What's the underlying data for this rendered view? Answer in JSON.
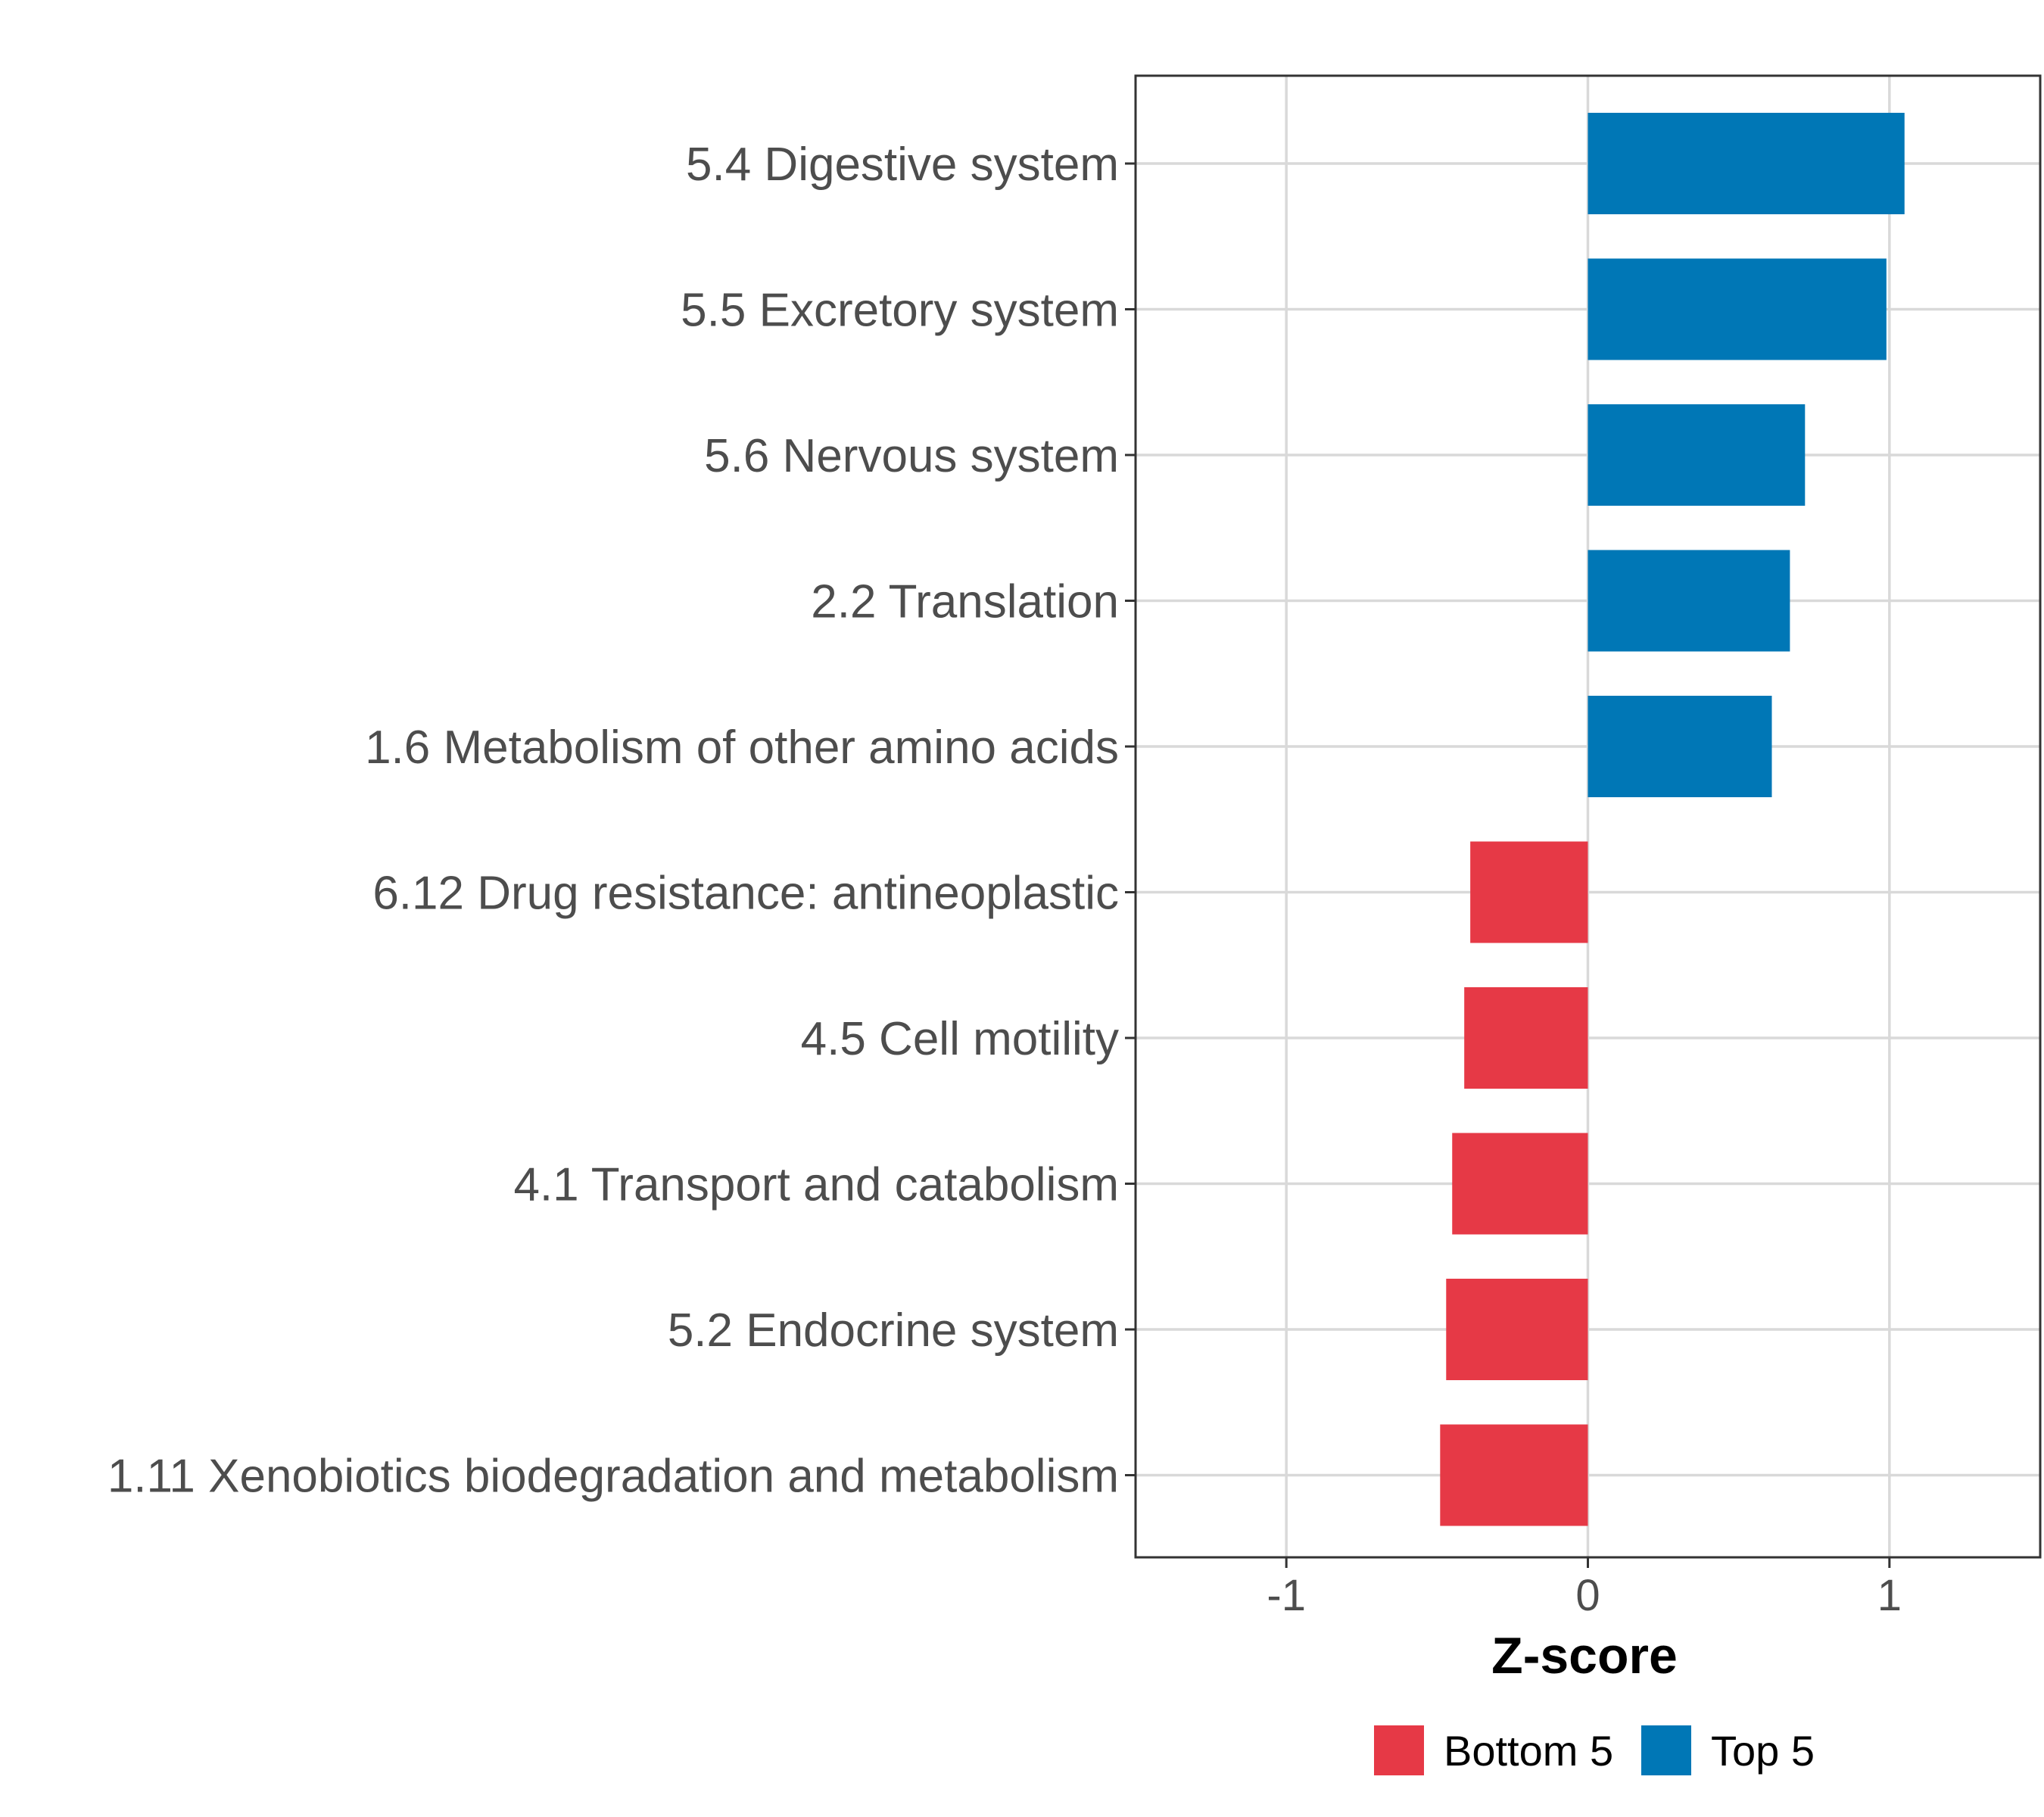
{
  "chart_data": {
    "type": "bar",
    "orientation": "horizontal",
    "title": "",
    "xlabel": "Z-score",
    "ylabel": "",
    "xlim": [
      -1.5,
      1.5
    ],
    "xticks": [
      -1,
      0,
      1
    ],
    "xtick_labels": [
      "-1",
      "0",
      "1"
    ],
    "grid": true,
    "legend_position": "bottom",
    "categories": [
      "5.4 Digestive system",
      "5.5 Excretory system",
      "5.6 Nervous system",
      "2.2 Translation",
      "1.6 Metabolism of other amino acids",
      "6.12 Drug resistance: antineoplastic",
      "4.5 Cell motility",
      "4.1 Transport and catabolism",
      "5.2 Endocrine system",
      "1.11 Xenobiotics biodegradation and metabolism"
    ],
    "values": [
      1.05,
      0.99,
      0.72,
      0.67,
      0.61,
      -0.39,
      -0.41,
      -0.45,
      -0.47,
      -0.49
    ],
    "groups": [
      "Top 5",
      "Top 5",
      "Top 5",
      "Top 5",
      "Top 5",
      "Bottom 5",
      "Bottom 5",
      "Bottom 5",
      "Bottom 5",
      "Bottom 5"
    ],
    "legend": [
      {
        "label": "Bottom 5",
        "color": "#e63946"
      },
      {
        "label": "Top 5",
        "color": "#0077b6"
      }
    ]
  }
}
